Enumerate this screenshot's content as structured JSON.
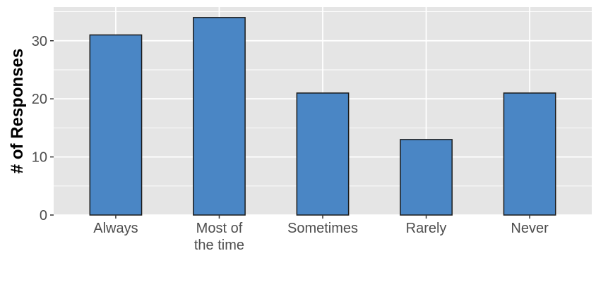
{
  "chart_data": {
    "type": "bar",
    "title": "",
    "xlabel": "",
    "ylabel": "# of Responses",
    "categories": [
      [
        "Always"
      ],
      [
        "Most of",
        "the time"
      ],
      [
        "Sometimes"
      ],
      [
        "Rarely"
      ],
      [
        "Never"
      ]
    ],
    "values": [
      31,
      34,
      21,
      13,
      21
    ],
    "ylim": [
      0,
      35.8
    ],
    "yticks": [
      0,
      10,
      20,
      30
    ],
    "grid": true,
    "legend": "none",
    "colors": {
      "bar_fill": "#4a86c5",
      "bar_stroke": "#1a1a1a",
      "panel_bg": "#e5e5e5",
      "grid": "#ffffff",
      "tick": "#333333"
    }
  }
}
